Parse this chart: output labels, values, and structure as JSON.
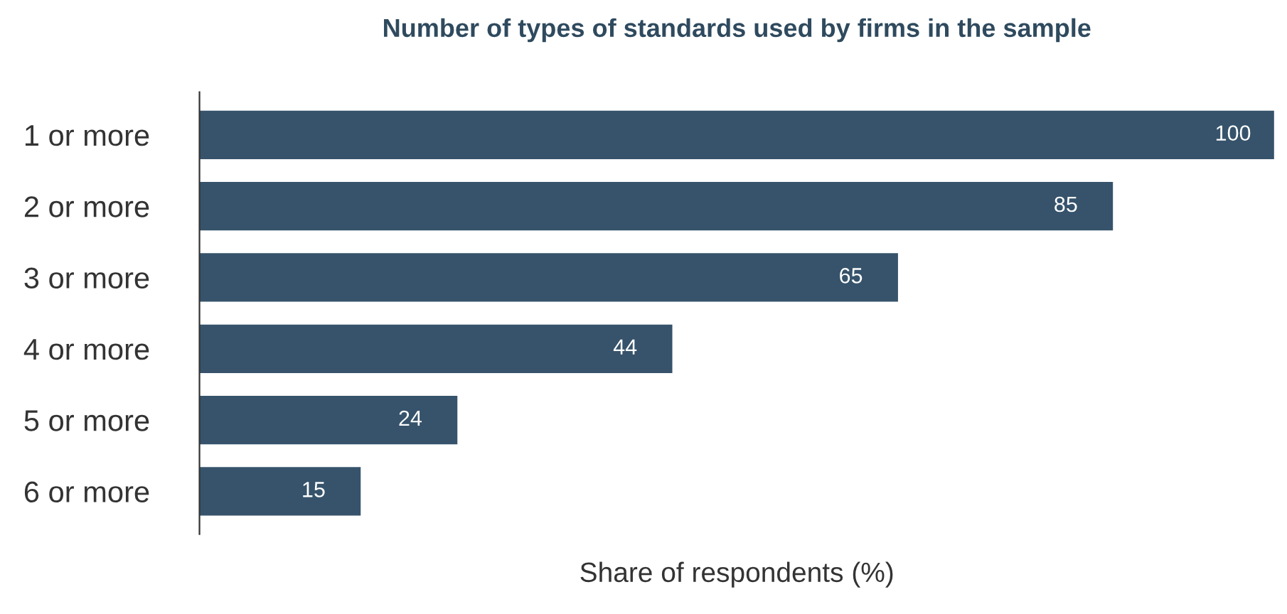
{
  "chart_data": {
    "type": "bar",
    "orientation": "horizontal",
    "title": "Number of types of standards used by firms in the sample",
    "xlabel": "Share of respondents (%)",
    "categories": [
      "1 or more",
      "2 or more",
      "3 or more",
      "4 or more",
      "5 or more",
      "6 or more"
    ],
    "values": [
      100,
      85,
      65,
      44,
      24,
      15
    ],
    "color": "#36536b",
    "xlim": [
      0,
      100
    ],
    "data_labels": true,
    "tick_labels": "y",
    "grid": false,
    "legend": false
  }
}
